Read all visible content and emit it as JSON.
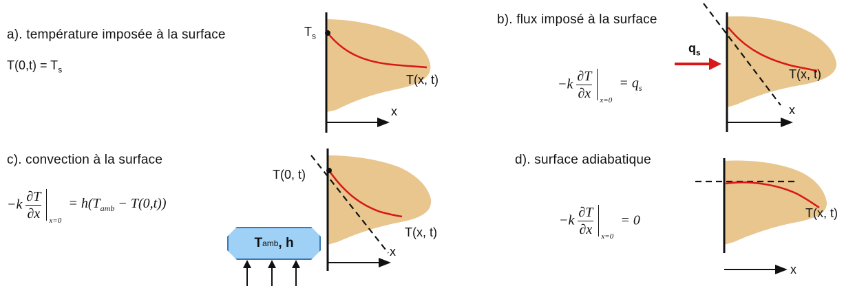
{
  "panel_a": {
    "heading": "a). température imposée à la surface",
    "surface_label": "T",
    "surface_label_sub": "s",
    "condition_lhs": "T(0,t) = T",
    "condition_sub": "s",
    "curve_label": "T(x, t)",
    "axis_label": "x"
  },
  "panel_b": {
    "heading": "b). flux imposé à la surface",
    "flux_label": "q",
    "flux_label_sub": "s",
    "eq_prefix": "−k",
    "eq_num": "∂T",
    "eq_den": "∂x",
    "eq_sub": "x=0",
    "eq_rhs": "= q",
    "eq_rhs_sub": "s",
    "curve_label": "T(x, t)",
    "axis_label": "x"
  },
  "panel_c": {
    "heading": "c). convection à la surface",
    "surface_label": "T(0, t)",
    "eq_prefix": "−k",
    "eq_num": "∂T",
    "eq_den": "∂x",
    "eq_sub": "x=0",
    "eq_rhs_1": "= h(T",
    "eq_rhs_sub": "amb",
    "eq_rhs_2": " − T(0,t))",
    "box_main": "T",
    "box_sub": "amb",
    "box_rest": ", h",
    "curve_label": "T(x, t)",
    "axis_label": "x"
  },
  "panel_d": {
    "heading": "d). surface adiabatique",
    "eq_prefix": "−k",
    "eq_num": "∂T",
    "eq_den": "∂x",
    "eq_sub": "x=0",
    "eq_rhs": "= 0",
    "curve_label": "T(x, t)",
    "axis_label": "x"
  },
  "colors": {
    "blob": "#e8c68e",
    "curve": "#d81818",
    "arrow_flux": "#d81818",
    "box_fill": "#9fd0f5",
    "box_border": "#3a78b5"
  }
}
